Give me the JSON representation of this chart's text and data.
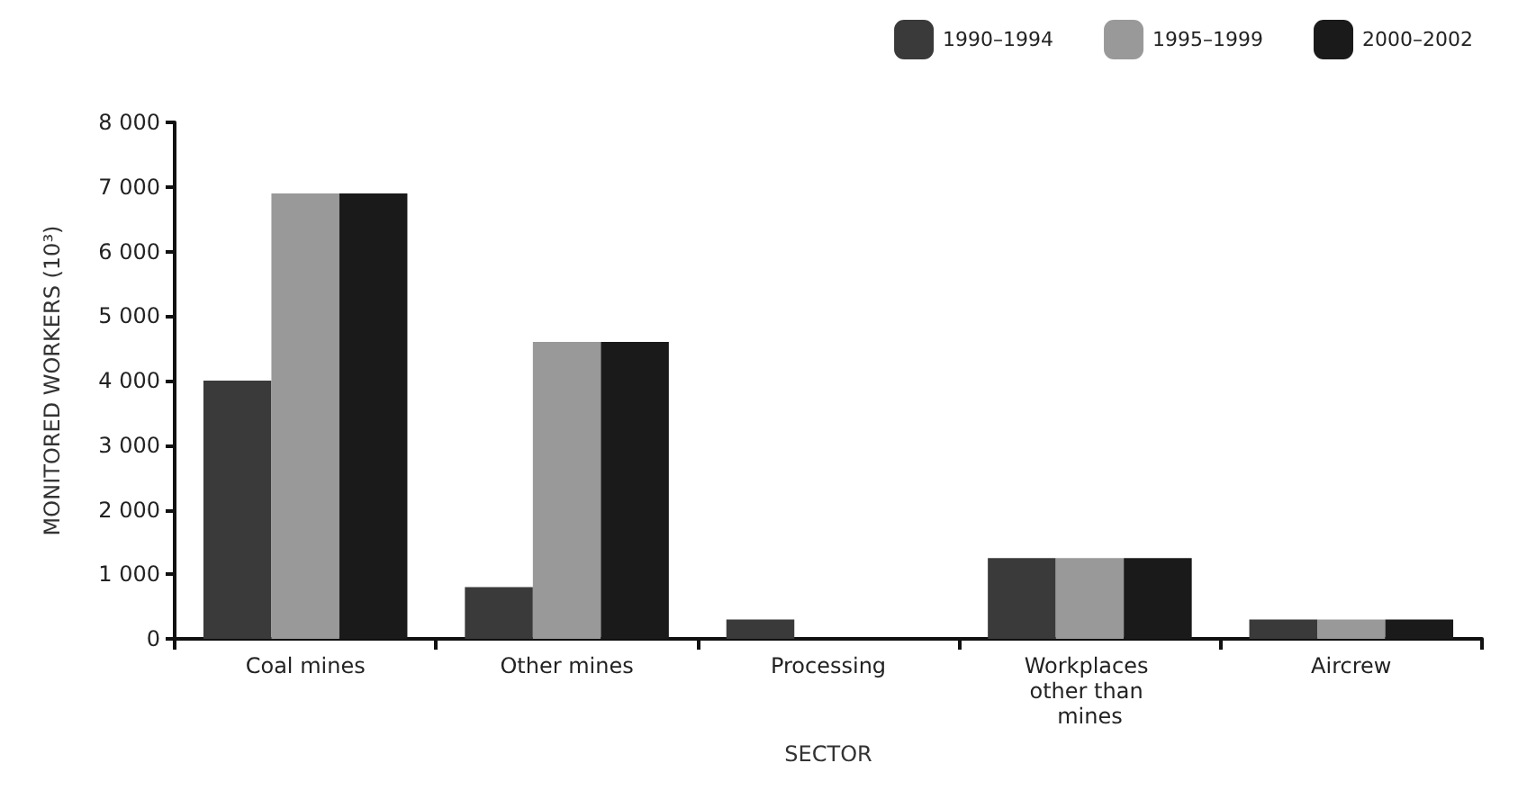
{
  "chart_data": {
    "type": "bar",
    "xlabel": "SECTOR",
    "ylabel": "MONITORED WORKERS (10³)",
    "categories": [
      "Coal mines",
      "Other mines",
      "Processing",
      "Workplaces other than mines",
      "Aircrew"
    ],
    "series": [
      {
        "name": "1990–1994",
        "color": "#3a3a3a",
        "values": [
          4000,
          800,
          300,
          1250,
          300
        ]
      },
      {
        "name": "1995–1999",
        "color": "#999999",
        "values": [
          6900,
          4600,
          0,
          1250,
          300
        ]
      },
      {
        "name": "2000–2002",
        "color": "#1a1a1a",
        "values": [
          6900,
          4600,
          0,
          1250,
          300
        ]
      }
    ],
    "ylim": [
      0,
      8000
    ],
    "yticks": [
      {
        "value": 0,
        "label": "0"
      },
      {
        "value": 1000,
        "label": "1 000"
      },
      {
        "value": 2000,
        "label": "2 000"
      },
      {
        "value": 3000,
        "label": "3 000"
      },
      {
        "value": 4000,
        "label": "4 000"
      },
      {
        "value": 5000,
        "label": "5 000"
      },
      {
        "value": 6000,
        "label": "6 000"
      },
      {
        "value": 7000,
        "label": "7 000"
      },
      {
        "value": 8000,
        "label": "8 000"
      }
    ],
    "grid": false,
    "legend": "top right"
  }
}
